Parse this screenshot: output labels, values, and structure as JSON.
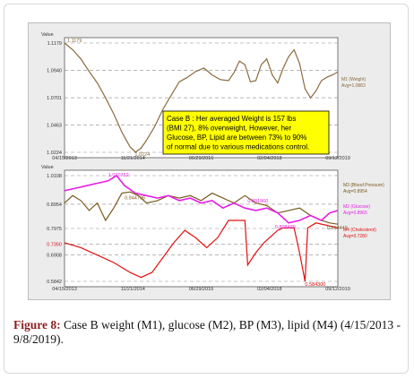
{
  "colors": {
    "weight": "#8b6a3e",
    "glucose": "#e81ce8",
    "bp": "#7a5a1e",
    "lipid": "#e01010",
    "note_bg": "#ffff00",
    "caption_label": "#8a1f1f"
  },
  "chart_data": [
    {
      "type": "line",
      "panel": "top",
      "ylabel": "Value",
      "ylim": [
        1.0224,
        1.1179
      ],
      "y_ticks": [
        "1.1179",
        "1.0940",
        "1.0701",
        "1.0463",
        "1.0224"
      ],
      "x_ticks": [
        "04/15/2013",
        "11/21/2014",
        "06/29/2016",
        "02/04/2018",
        "09/12/2019"
      ],
      "annotations": {
        "max": "1.1179",
        "min": "1.0224"
      },
      "series": [
        {
          "name": "M1 (Weight)",
          "avg_label": "Avg=1.0883",
          "x": [
            0,
            0.03,
            0.06,
            0.09,
            0.12,
            0.15,
            0.18,
            0.21,
            0.24,
            0.26,
            0.28,
            0.3,
            0.33,
            0.36,
            0.39,
            0.42,
            0.45,
            0.48,
            0.51,
            0.54,
            0.57,
            0.6,
            0.62,
            0.64,
            0.66,
            0.68,
            0.7,
            0.72,
            0.74,
            0.76,
            0.78,
            0.8,
            0.82,
            0.84,
            0.86,
            0.88,
            0.9,
            0.92,
            0.94,
            0.96,
            0.98,
            1.0
          ],
          "values": [
            1.1179,
            1.112,
            1.104,
            1.093,
            1.083,
            1.07,
            1.056,
            1.04,
            1.027,
            1.0226,
            1.026,
            1.033,
            1.045,
            1.06,
            1.072,
            1.084,
            1.088,
            1.093,
            1.096,
            1.09,
            1.086,
            1.085,
            1.092,
            1.102,
            1.099,
            1.084,
            1.085,
            1.099,
            1.104,
            1.09,
            1.083,
            1.096,
            1.106,
            1.112,
            1.1,
            1.078,
            1.07,
            1.076,
            1.085,
            1.088,
            1.09,
            1.0925
          ]
        }
      ]
    },
    {
      "type": "line",
      "panel": "bottom",
      "ylabel": "Value",
      "ylim": [
        0.5842,
        1.0108
      ],
      "y_ticks": [
        "1.0108",
        "0.8954",
        "0.7975",
        "0.7350",
        "0.6908",
        "0.5842"
      ],
      "x_ticks": [
        "04/15/2013",
        "11/21/2014",
        "06/29/2016",
        "02/04/2018",
        "09/12/2019"
      ],
      "annotations": {
        "glucose_max": "1.010752",
        "bp_max": "0.944796",
        "glucose_min": "0.808499",
        "bp_mid": "0.891960",
        "lipid_min": "0.584300",
        "end": "0.814440"
      },
      "series": [
        {
          "name": "M3 (Blood Pressure)",
          "avg_label": "Avg=0.8954",
          "x": [
            0,
            0.03,
            0.06,
            0.09,
            0.12,
            0.15,
            0.18,
            0.21,
            0.24,
            0.27,
            0.3,
            0.34,
            0.38,
            0.42,
            0.46,
            0.5,
            0.54,
            0.58,
            0.62,
            0.66,
            0.7,
            0.74,
            0.78,
            0.82,
            0.86,
            0.9,
            0.94,
            0.97,
            1.0
          ],
          "values": [
            0.9,
            0.93,
            0.91,
            0.87,
            0.9,
            0.83,
            0.88,
            0.94,
            0.945,
            0.93,
            0.9,
            0.91,
            0.93,
            0.92,
            0.93,
            0.91,
            0.94,
            0.92,
            0.9,
            0.93,
            0.9,
            0.89,
            0.86,
            0.87,
            0.88,
            0.85,
            0.83,
            0.82,
            0.815
          ]
        },
        {
          "name": "M2 (Glucose)",
          "avg_label": "Avg=0.8965",
          "x": [
            0,
            0.04,
            0.08,
            0.12,
            0.16,
            0.19,
            0.22,
            0.26,
            0.3,
            0.34,
            0.38,
            0.42,
            0.46,
            0.5,
            0.54,
            0.58,
            0.62,
            0.66,
            0.7,
            0.74,
            0.78,
            0.82,
            0.86,
            0.9,
            0.94,
            0.97,
            1.0
          ],
          "values": [
            0.95,
            0.96,
            0.97,
            0.98,
            0.99,
            1.0108,
            0.97,
            0.94,
            0.93,
            0.92,
            0.93,
            0.91,
            0.92,
            0.9,
            0.91,
            0.88,
            0.9,
            0.88,
            0.87,
            0.88,
            0.86,
            0.82,
            0.83,
            0.85,
            0.83,
            0.86,
            0.87
          ]
        },
        {
          "name": "M4 (Cholesterol)",
          "avg_label": "Avg=0.7280",
          "x": [
            0,
            0.06,
            0.12,
            0.18,
            0.24,
            0.28,
            0.32,
            0.36,
            0.4,
            0.44,
            0.48,
            0.52,
            0.56,
            0.6,
            0.64,
            0.66,
            0.67,
            0.7,
            0.73,
            0.76,
            0.78,
            0.8,
            0.82,
            0.84,
            0.86,
            0.88,
            0.89,
            0.92,
            0.96,
            1.0
          ],
          "values": [
            0.74,
            0.72,
            0.69,
            0.66,
            0.62,
            0.6,
            0.62,
            0.68,
            0.74,
            0.79,
            0.76,
            0.72,
            0.76,
            0.83,
            0.83,
            0.83,
            0.65,
            0.7,
            0.74,
            0.77,
            0.79,
            0.8,
            0.8,
            0.8,
            0.7,
            0.5843,
            0.8,
            0.82,
            0.81,
            0.8
          ]
        }
      ]
    }
  ],
  "note": {
    "lines": [
      "Case B :      Her averaged Weight is 157 lbs",
      "(BMI 27), 8% overweight,     However, her",
      "Glucose, BP, Lipid are between 73% to 90%",
      "of normal due to various medications control."
    ]
  },
  "caption": {
    "label": "Figure 8:",
    "text": " Case B weight (M1), glucose (M2), BP (M3), lipid (M4) (4/15/2013 - 9/8/2019)."
  }
}
